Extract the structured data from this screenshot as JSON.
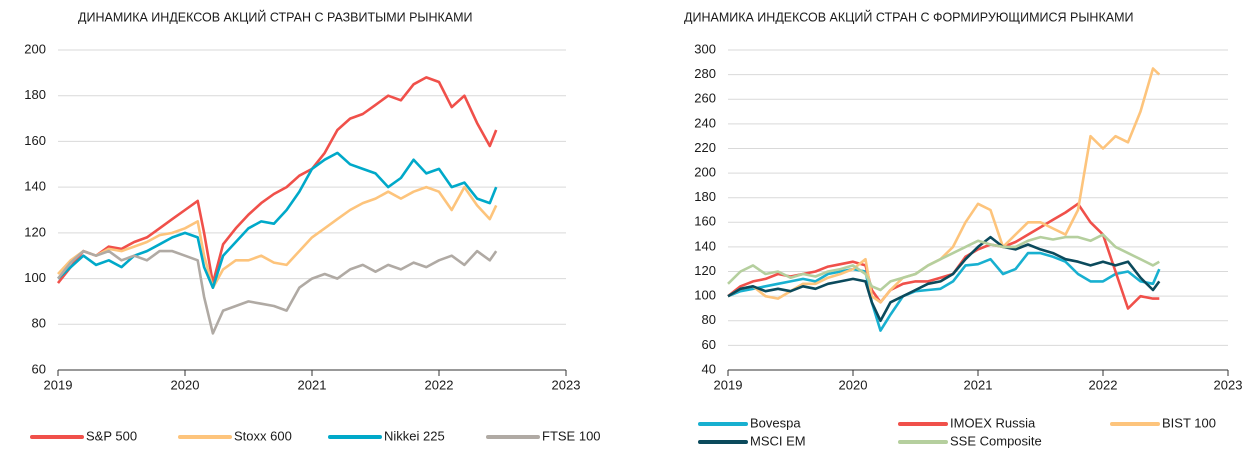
{
  "chart_data": [
    {
      "type": "line",
      "title": "ДИНАМИКА ИНДЕКСОВ АКЦИЙ СТРАН С РАЗВИТЫМИ РЫНКАМИ",
      "x": [
        2019.0,
        2019.1,
        2019.2,
        2019.3,
        2019.4,
        2019.5,
        2019.6,
        2019.7,
        2019.8,
        2019.9,
        2020.0,
        2020.1,
        2020.15,
        2020.22,
        2020.3,
        2020.4,
        2020.5,
        2020.6,
        2020.7,
        2020.8,
        2020.9,
        2021.0,
        2021.1,
        2021.2,
        2021.3,
        2021.4,
        2021.5,
        2021.6,
        2021.7,
        2021.8,
        2021.9,
        2022.0,
        2022.1,
        2022.2,
        2022.3,
        2022.4,
        2022.45
      ],
      "xlim": [
        2019,
        2023
      ],
      "xticks": [
        2019,
        2020,
        2021,
        2022,
        2023
      ],
      "ylim": [
        60,
        200
      ],
      "yticks": [
        60,
        80,
        100,
        120,
        140,
        160,
        180,
        200
      ],
      "grid": true,
      "series": [
        {
          "name": "S&P 500",
          "color": "#f0504a",
          "values": [
            98,
            105,
            112,
            110,
            114,
            113,
            116,
            118,
            122,
            126,
            130,
            134,
            120,
            98,
            115,
            122,
            128,
            133,
            137,
            140,
            145,
            148,
            155,
            165,
            170,
            172,
            176,
            180,
            178,
            185,
            188,
            186,
            175,
            180,
            168,
            158,
            165
          ]
        },
        {
          "name": "Stoxx 600",
          "color": "#fdc47c",
          "values": [
            102,
            108,
            112,
            110,
            113,
            112,
            114,
            116,
            119,
            120,
            122,
            125,
            110,
            96,
            104,
            108,
            108,
            110,
            107,
            106,
            112,
            118,
            122,
            126,
            130,
            133,
            135,
            138,
            135,
            138,
            140,
            138,
            130,
            140,
            132,
            126,
            132
          ]
        },
        {
          "name": "Nikkei 225",
          "color": "#00a9c9",
          "values": [
            100,
            105,
            110,
            106,
            108,
            105,
            110,
            112,
            115,
            118,
            120,
            118,
            105,
            96,
            110,
            116,
            122,
            125,
            124,
            130,
            138,
            148,
            152,
            155,
            150,
            148,
            146,
            140,
            144,
            152,
            146,
            148,
            140,
            142,
            135,
            133,
            140
          ]
        },
        {
          "name": "FTSE 100",
          "color": "#b0aaa4",
          "values": [
            100,
            107,
            112,
            110,
            112,
            108,
            110,
            108,
            112,
            112,
            110,
            108,
            92,
            76,
            86,
            88,
            90,
            89,
            88,
            86,
            96,
            100,
            102,
            100,
            104,
            106,
            103,
            106,
            104,
            107,
            105,
            108,
            110,
            106,
            112,
            108,
            112
          ]
        }
      ]
    },
    {
      "type": "line",
      "title": "ДИНАМИКА ИНДЕКСОВ АКЦИЙ СТРАН С ФОРМИРУЮЩИМИСЯ РЫНКАМИ",
      "x": [
        2019.0,
        2019.1,
        2019.2,
        2019.3,
        2019.4,
        2019.5,
        2019.6,
        2019.7,
        2019.8,
        2019.9,
        2020.0,
        2020.1,
        2020.15,
        2020.22,
        2020.3,
        2020.4,
        2020.5,
        2020.6,
        2020.7,
        2020.8,
        2020.9,
        2021.0,
        2021.1,
        2021.2,
        2021.3,
        2021.4,
        2021.5,
        2021.6,
        2021.7,
        2021.8,
        2021.9,
        2022.0,
        2022.1,
        2022.2,
        2022.3,
        2022.4,
        2022.45
      ],
      "xlim": [
        2019,
        2023
      ],
      "xticks": [
        2019,
        2020,
        2021,
        2022,
        2023
      ],
      "ylim": [
        40,
        300
      ],
      "yticks": [
        40,
        60,
        80,
        100,
        120,
        140,
        160,
        180,
        200,
        220,
        240,
        260,
        280,
        300
      ],
      "grid": true,
      "series": [
        {
          "name": "Bovespa",
          "color": "#18b0d0",
          "values": [
            100,
            104,
            106,
            108,
            110,
            112,
            114,
            112,
            118,
            120,
            122,
            120,
            95,
            72,
            85,
            100,
            104,
            105,
            106,
            112,
            125,
            126,
            130,
            118,
            122,
            135,
            135,
            132,
            128,
            118,
            112,
            112,
            118,
            120,
            112,
            110,
            122
          ]
        },
        {
          "name": "IMOEX Russia",
          "color": "#f0504a",
          "values": [
            100,
            108,
            112,
            114,
            118,
            116,
            118,
            120,
            124,
            126,
            128,
            125,
            105,
            95,
            105,
            110,
            112,
            112,
            115,
            118,
            132,
            138,
            142,
            140,
            144,
            150,
            156,
            162,
            168,
            175,
            160,
            150,
            120,
            90,
            100,
            98,
            98
          ]
        },
        {
          "name": "BIST 100",
          "color": "#fdc47c",
          "values": [
            100,
            106,
            108,
            100,
            98,
            104,
            110,
            110,
            115,
            118,
            122,
            130,
            100,
            95,
            105,
            115,
            118,
            125,
            130,
            140,
            160,
            175,
            170,
            140,
            150,
            160,
            160,
            155,
            150,
            170,
            230,
            220,
            230,
            225,
            250,
            285,
            280
          ]
        },
        {
          "name": "MSCI EM",
          "color": "#0b4a5c",
          "values": [
            100,
            106,
            108,
            104,
            106,
            104,
            108,
            106,
            110,
            112,
            114,
            112,
            95,
            80,
            95,
            100,
            105,
            110,
            112,
            118,
            130,
            140,
            148,
            140,
            138,
            142,
            138,
            135,
            130,
            128,
            125,
            128,
            125,
            128,
            115,
            105,
            112
          ]
        },
        {
          "name": "SSE Composite",
          "color": "#b5cf9e",
          "values": [
            110,
            120,
            125,
            118,
            120,
            115,
            118,
            116,
            120,
            122,
            125,
            118,
            108,
            105,
            112,
            115,
            118,
            125,
            130,
            135,
            140,
            145,
            142,
            140,
            140,
            145,
            148,
            146,
            148,
            148,
            145,
            150,
            140,
            135,
            130,
            125,
            128
          ]
        }
      ]
    }
  ]
}
